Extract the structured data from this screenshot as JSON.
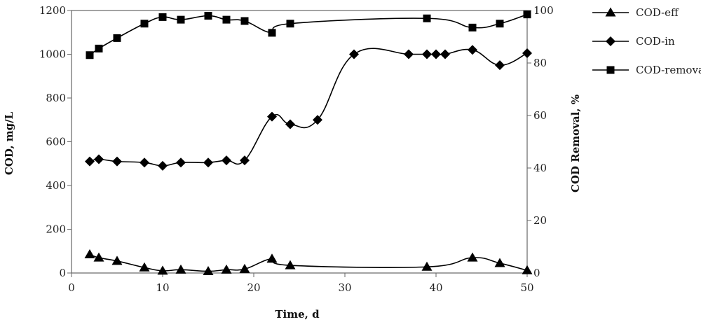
{
  "chart_data": {
    "type": "line",
    "xlabel": "Time, d",
    "ylabel": "COD, mg/L",
    "y2label": "COD Removal, %",
    "xlim": [
      0,
      50
    ],
    "ylim": [
      0,
      1200
    ],
    "y2lim": [
      0,
      100
    ],
    "x_ticks": [
      0,
      10,
      20,
      30,
      40,
      50
    ],
    "y_ticks": [
      0,
      200,
      400,
      600,
      800,
      1000,
      1200
    ],
    "y2_ticks": [
      0,
      20,
      40,
      60,
      80,
      100
    ],
    "grid": false,
    "smooth": true,
    "legend_position": "right",
    "series": [
      {
        "name": "COD-eff",
        "axis": "left",
        "marker": "triangle",
        "color": "#000000",
        "x": [
          2,
          3,
          5,
          8,
          10,
          12,
          15,
          17,
          19,
          22,
          24,
          39,
          44,
          47,
          50
        ],
        "y": [
          85,
          70,
          55,
          25,
          10,
          15,
          8,
          15,
          18,
          65,
          35,
          28,
          70,
          45,
          12
        ]
      },
      {
        "name": "COD-in",
        "axis": "left",
        "marker": "diamond",
        "color": "#000000",
        "x": [
          2,
          3,
          5,
          8,
          10,
          12,
          15,
          17,
          19,
          22,
          24,
          27,
          31,
          37,
          39,
          40,
          41,
          44,
          47,
          50
        ],
        "y": [
          510,
          520,
          510,
          505,
          490,
          505,
          505,
          515,
          515,
          715,
          680,
          700,
          1000,
          1000,
          1000,
          1000,
          1000,
          1020,
          950,
          1005
        ]
      },
      {
        "name": "COD-removal",
        "axis": "right",
        "marker": "square",
        "color": "#000000",
        "x": [
          2,
          3,
          5,
          8,
          10,
          12,
          15,
          17,
          19,
          22,
          24,
          39,
          44,
          47,
          50
        ],
        "y": [
          83,
          85.5,
          89.5,
          95,
          97.5,
          96.5,
          98,
          96.5,
          96,
          91.5,
          95,
          97,
          93.5,
          95,
          98.5
        ]
      }
    ]
  }
}
